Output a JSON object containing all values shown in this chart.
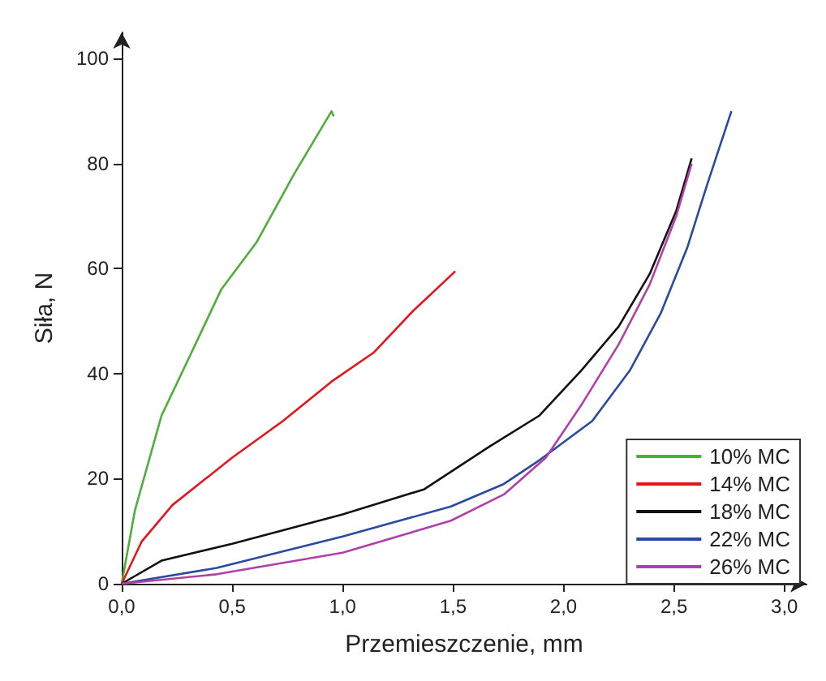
{
  "chart_data": {
    "type": "line",
    "xlabel": "Przemieszczenie, mm",
    "ylabel": "Siła, N",
    "xlim": [
      0,
      3.1
    ],
    "ylim": [
      0,
      105
    ],
    "xticks": [
      {
        "value": 0,
        "label": "0,0"
      },
      {
        "value": 0.5,
        "label": "0,5"
      },
      {
        "value": 1,
        "label": "1,0"
      },
      {
        "value": 1.5,
        "label": "1,5"
      },
      {
        "value": 2,
        "label": "2,0"
      },
      {
        "value": 2.5,
        "label": "2,5"
      },
      {
        "value": 3,
        "label": "3,0"
      }
    ],
    "yticks": [
      0,
      20,
      40,
      60,
      80,
      100
    ],
    "grid": false,
    "legend": "bottom right",
    "marker": "none",
    "line_style": "solid",
    "series": [
      {
        "name": "10% MC",
        "color": "#4daf3a",
        "x": [
          0,
          0.06,
          0.18,
          0.31,
          0.45,
          0.61,
          0.78,
          0.95,
          0.96
        ],
        "values": [
          0,
          14,
          32,
          43.5,
          56,
          65,
          78,
          90,
          89
        ]
      },
      {
        "name": "14% MC",
        "color": "#e8141b",
        "x": [
          0,
          0.09,
          0.23,
          0.5,
          0.73,
          0.95,
          1.14,
          1.32,
          1.51
        ],
        "values": [
          0,
          8,
          15,
          24,
          31,
          38.5,
          44,
          52,
          59.5
        ]
      },
      {
        "name": "18% MC",
        "color": "#111111",
        "x": [
          0,
          0.18,
          0.5,
          1.0,
          1.37,
          1.66,
          1.89,
          2.08,
          2.25,
          2.39,
          2.51,
          2.58
        ],
        "values": [
          0,
          4.4,
          7.6,
          13.2,
          18,
          26,
          32,
          40.6,
          49,
          59,
          71,
          81
        ]
      },
      {
        "name": "22% MC",
        "color": "#2a4aa0",
        "x": [
          0,
          0.43,
          1.0,
          1.49,
          1.73,
          1.89,
          2.13,
          2.3,
          2.44,
          2.56,
          2.65,
          2.76
        ],
        "values": [
          0,
          3,
          9,
          14.7,
          19,
          23.5,
          31,
          40.6,
          51.5,
          64,
          76,
          90
        ]
      },
      {
        "name": "26% MC",
        "color": "#b23fa8",
        "x": [
          0,
          0.43,
          1.0,
          1.49,
          1.73,
          1.92,
          2.08,
          2.25,
          2.39,
          2.51,
          2.58
        ],
        "values": [
          0,
          1.8,
          5.9,
          12,
          17,
          24,
          34,
          45.6,
          57,
          70,
          80
        ]
      }
    ]
  }
}
